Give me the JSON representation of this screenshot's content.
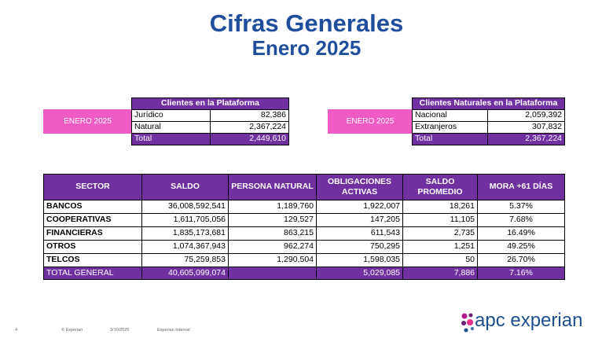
{
  "header": {
    "title": "Cifras Generales",
    "subtitle": "Enero 2025"
  },
  "clients_table": {
    "period": "ENERO 2025",
    "title": "Clientes en la Plataforma",
    "rows": [
      [
        "Jurídico",
        "82,386"
      ],
      [
        "Natural",
        "2,367,224"
      ]
    ],
    "total": [
      "Total",
      "2,449,610"
    ]
  },
  "natural_clients_table": {
    "period": "ENERO 2025",
    "title": "Clientes Naturales en la Plataforma",
    "rows": [
      [
        "Nacional",
        "2,059,392"
      ],
      [
        "Extranjeros",
        "307,832"
      ]
    ],
    "total": [
      "Total",
      "2,367,224"
    ]
  },
  "sector_table": {
    "columns": [
      "SECTOR",
      "SALDO",
      "PERSONA NATURAL",
      "OBLIGACIONES ACTIVAS",
      "SALDO PROMEDIO",
      "MORA +61 DÍAS"
    ],
    "rows": [
      [
        "BANCOS",
        "36,008,592,541",
        "1,189,760",
        "1,922,007",
        "18,261",
        "5.37%"
      ],
      [
        "COOPERATIVAS",
        "1,611,705,056",
        "129,527",
        "147,205",
        "11,105",
        "7.68%"
      ],
      [
        "FINANCIERAS",
        "1,835,173,681",
        "863,215",
        "611,543",
        "2,735",
        "16.49%"
      ],
      [
        "OTROS",
        "1,074,367,943",
        "962,274",
        "750,295",
        "1,251",
        "49.25%"
      ],
      [
        "TELCOS",
        "75,259,853",
        "1,290,504",
        "1,598,035",
        "50",
        "26.70%"
      ]
    ],
    "total": {
      "label": "TOTAL GENERAL",
      "saldo": "40,605,099,074",
      "obligaciones": "5,029,085",
      "promedio": "7,886",
      "mora": "7.16%"
    }
  },
  "footer": {
    "page": "4",
    "copyright": "© Experian",
    "date": "3/10/2025",
    "classification": "Experian Internal",
    "logo": "apc experian"
  }
}
